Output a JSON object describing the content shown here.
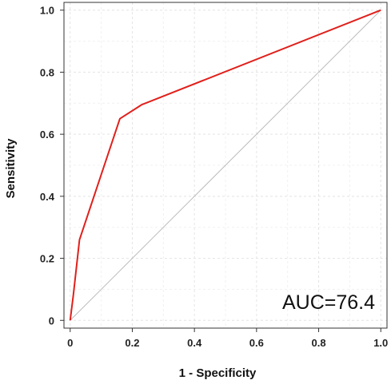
{
  "chart_data": {
    "type": "line",
    "xlabel": "1 - Specificity",
    "ylabel": "Sensitivity",
    "xlim": [
      -0.02,
      1.02
    ],
    "ylim": [
      -0.025,
      1.025
    ],
    "grid": true,
    "x_ticks": [
      {
        "value": 0,
        "label": "0"
      },
      {
        "value": 0.2,
        "label": "0.2"
      },
      {
        "value": 0.4,
        "label": "0.4"
      },
      {
        "value": 0.6,
        "label": "0.6"
      },
      {
        "value": 0.8,
        "label": "0.8"
      },
      {
        "value": 1.0,
        "label": "1.0"
      }
    ],
    "y_ticks": [
      {
        "value": 0,
        "label": "0"
      },
      {
        "value": 0.2,
        "label": "0.2"
      },
      {
        "value": 0.4,
        "label": "0.4"
      },
      {
        "value": 0.6,
        "label": "0.6"
      },
      {
        "value": 0.8,
        "label": "0.8"
      },
      {
        "value": 1.0,
        "label": "1.0"
      }
    ],
    "series": [
      {
        "color": "#e0201b",
        "x": [
          0,
          0.01,
          0.03,
          0.16,
          0.23,
          1.0
        ],
        "y": [
          0,
          0.08,
          0.26,
          0.65,
          0.695,
          1.0
        ]
      }
    ],
    "reference_line": {
      "color": "#bbbbbb",
      "x": [
        0,
        1
      ],
      "y": [
        0,
        1
      ]
    },
    "annotation": "AUC=76.4"
  }
}
